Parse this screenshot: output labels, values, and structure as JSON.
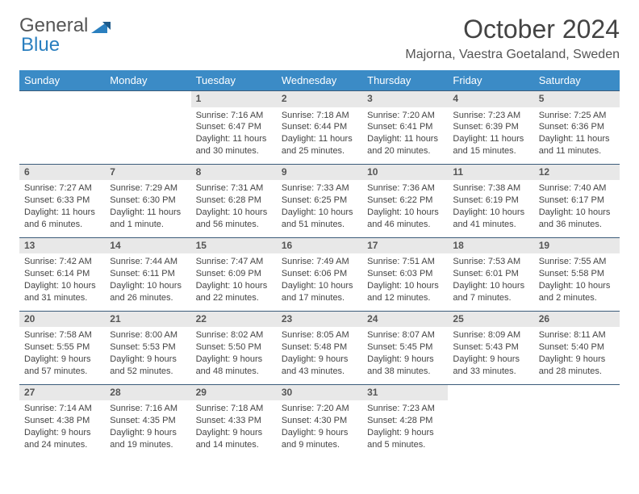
{
  "logo": {
    "text1": "General",
    "text2": "Blue"
  },
  "title": "October 2024",
  "location": "Majorna, Vaestra Goetaland, Sweden",
  "colors": {
    "header_bg": "#3b8bc6",
    "header_fg": "#ffffff",
    "daynum_bg": "#e8e8e8",
    "rule": "#3b5c7a",
    "text": "#444444"
  },
  "weekdays": [
    "Sunday",
    "Monday",
    "Tuesday",
    "Wednesday",
    "Thursday",
    "Friday",
    "Saturday"
  ],
  "weeks": [
    [
      null,
      null,
      {
        "n": "1",
        "sr": "Sunrise: 7:16 AM",
        "ss": "Sunset: 6:47 PM",
        "d1": "Daylight: 11 hours",
        "d2": "and 30 minutes."
      },
      {
        "n": "2",
        "sr": "Sunrise: 7:18 AM",
        "ss": "Sunset: 6:44 PM",
        "d1": "Daylight: 11 hours",
        "d2": "and 25 minutes."
      },
      {
        "n": "3",
        "sr": "Sunrise: 7:20 AM",
        "ss": "Sunset: 6:41 PM",
        "d1": "Daylight: 11 hours",
        "d2": "and 20 minutes."
      },
      {
        "n": "4",
        "sr": "Sunrise: 7:23 AM",
        "ss": "Sunset: 6:39 PM",
        "d1": "Daylight: 11 hours",
        "d2": "and 15 minutes."
      },
      {
        "n": "5",
        "sr": "Sunrise: 7:25 AM",
        "ss": "Sunset: 6:36 PM",
        "d1": "Daylight: 11 hours",
        "d2": "and 11 minutes."
      }
    ],
    [
      {
        "n": "6",
        "sr": "Sunrise: 7:27 AM",
        "ss": "Sunset: 6:33 PM",
        "d1": "Daylight: 11 hours",
        "d2": "and 6 minutes."
      },
      {
        "n": "7",
        "sr": "Sunrise: 7:29 AM",
        "ss": "Sunset: 6:30 PM",
        "d1": "Daylight: 11 hours",
        "d2": "and 1 minute."
      },
      {
        "n": "8",
        "sr": "Sunrise: 7:31 AM",
        "ss": "Sunset: 6:28 PM",
        "d1": "Daylight: 10 hours",
        "d2": "and 56 minutes."
      },
      {
        "n": "9",
        "sr": "Sunrise: 7:33 AM",
        "ss": "Sunset: 6:25 PM",
        "d1": "Daylight: 10 hours",
        "d2": "and 51 minutes."
      },
      {
        "n": "10",
        "sr": "Sunrise: 7:36 AM",
        "ss": "Sunset: 6:22 PM",
        "d1": "Daylight: 10 hours",
        "d2": "and 46 minutes."
      },
      {
        "n": "11",
        "sr": "Sunrise: 7:38 AM",
        "ss": "Sunset: 6:19 PM",
        "d1": "Daylight: 10 hours",
        "d2": "and 41 minutes."
      },
      {
        "n": "12",
        "sr": "Sunrise: 7:40 AM",
        "ss": "Sunset: 6:17 PM",
        "d1": "Daylight: 10 hours",
        "d2": "and 36 minutes."
      }
    ],
    [
      {
        "n": "13",
        "sr": "Sunrise: 7:42 AM",
        "ss": "Sunset: 6:14 PM",
        "d1": "Daylight: 10 hours",
        "d2": "and 31 minutes."
      },
      {
        "n": "14",
        "sr": "Sunrise: 7:44 AM",
        "ss": "Sunset: 6:11 PM",
        "d1": "Daylight: 10 hours",
        "d2": "and 26 minutes."
      },
      {
        "n": "15",
        "sr": "Sunrise: 7:47 AM",
        "ss": "Sunset: 6:09 PM",
        "d1": "Daylight: 10 hours",
        "d2": "and 22 minutes."
      },
      {
        "n": "16",
        "sr": "Sunrise: 7:49 AM",
        "ss": "Sunset: 6:06 PM",
        "d1": "Daylight: 10 hours",
        "d2": "and 17 minutes."
      },
      {
        "n": "17",
        "sr": "Sunrise: 7:51 AM",
        "ss": "Sunset: 6:03 PM",
        "d1": "Daylight: 10 hours",
        "d2": "and 12 minutes."
      },
      {
        "n": "18",
        "sr": "Sunrise: 7:53 AM",
        "ss": "Sunset: 6:01 PM",
        "d1": "Daylight: 10 hours",
        "d2": "and 7 minutes."
      },
      {
        "n": "19",
        "sr": "Sunrise: 7:55 AM",
        "ss": "Sunset: 5:58 PM",
        "d1": "Daylight: 10 hours",
        "d2": "and 2 minutes."
      }
    ],
    [
      {
        "n": "20",
        "sr": "Sunrise: 7:58 AM",
        "ss": "Sunset: 5:55 PM",
        "d1": "Daylight: 9 hours",
        "d2": "and 57 minutes."
      },
      {
        "n": "21",
        "sr": "Sunrise: 8:00 AM",
        "ss": "Sunset: 5:53 PM",
        "d1": "Daylight: 9 hours",
        "d2": "and 52 minutes."
      },
      {
        "n": "22",
        "sr": "Sunrise: 8:02 AM",
        "ss": "Sunset: 5:50 PM",
        "d1": "Daylight: 9 hours",
        "d2": "and 48 minutes."
      },
      {
        "n": "23",
        "sr": "Sunrise: 8:05 AM",
        "ss": "Sunset: 5:48 PM",
        "d1": "Daylight: 9 hours",
        "d2": "and 43 minutes."
      },
      {
        "n": "24",
        "sr": "Sunrise: 8:07 AM",
        "ss": "Sunset: 5:45 PM",
        "d1": "Daylight: 9 hours",
        "d2": "and 38 minutes."
      },
      {
        "n": "25",
        "sr": "Sunrise: 8:09 AM",
        "ss": "Sunset: 5:43 PM",
        "d1": "Daylight: 9 hours",
        "d2": "and 33 minutes."
      },
      {
        "n": "26",
        "sr": "Sunrise: 8:11 AM",
        "ss": "Sunset: 5:40 PM",
        "d1": "Daylight: 9 hours",
        "d2": "and 28 minutes."
      }
    ],
    [
      {
        "n": "27",
        "sr": "Sunrise: 7:14 AM",
        "ss": "Sunset: 4:38 PM",
        "d1": "Daylight: 9 hours",
        "d2": "and 24 minutes."
      },
      {
        "n": "28",
        "sr": "Sunrise: 7:16 AM",
        "ss": "Sunset: 4:35 PM",
        "d1": "Daylight: 9 hours",
        "d2": "and 19 minutes."
      },
      {
        "n": "29",
        "sr": "Sunrise: 7:18 AM",
        "ss": "Sunset: 4:33 PM",
        "d1": "Daylight: 9 hours",
        "d2": "and 14 minutes."
      },
      {
        "n": "30",
        "sr": "Sunrise: 7:20 AM",
        "ss": "Sunset: 4:30 PM",
        "d1": "Daylight: 9 hours",
        "d2": "and 9 minutes."
      },
      {
        "n": "31",
        "sr": "Sunrise: 7:23 AM",
        "ss": "Sunset: 4:28 PM",
        "d1": "Daylight: 9 hours",
        "d2": "and 5 minutes."
      },
      null,
      null
    ]
  ]
}
